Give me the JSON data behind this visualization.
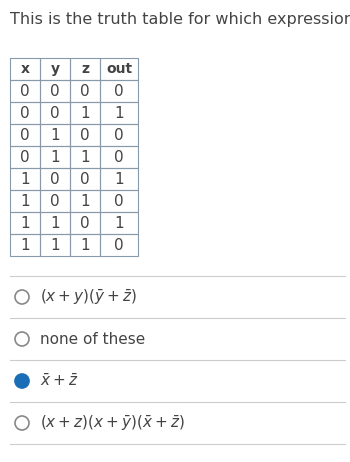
{
  "title": "This is the truth table for which expression?",
  "title_fontsize": 11.5,
  "table_headers": [
    "x",
    "y",
    "z",
    "out"
  ],
  "table_rows": [
    [
      "0",
      "0",
      "0",
      "0"
    ],
    [
      "0",
      "0",
      "1",
      "1"
    ],
    [
      "0",
      "1",
      "0",
      "0"
    ],
    [
      "0",
      "1",
      "1",
      "0"
    ],
    [
      "1",
      "0",
      "0",
      "1"
    ],
    [
      "1",
      "0",
      "1",
      "0"
    ],
    [
      "1",
      "1",
      "0",
      "1"
    ],
    [
      "1",
      "1",
      "1",
      "0"
    ]
  ],
  "bg_color": "#ffffff",
  "table_border_color": "#8899aa",
  "text_color": "#444444",
  "selected_color": "#1a6eb5",
  "unselected_color": "#888888",
  "separator_color": "#cccccc",
  "options": [
    {
      "latex": "$(x + y)(\\bar{y} + \\bar{z})$",
      "selected": false
    },
    {
      "latex": "none of these",
      "selected": false
    },
    {
      "latex": "$\\bar{x} + \\bar{z}$",
      "selected": true
    },
    {
      "latex": "$(x + z)(x + \\bar{y})(\\bar{x} + \\bar{z})$",
      "selected": false
    }
  ]
}
